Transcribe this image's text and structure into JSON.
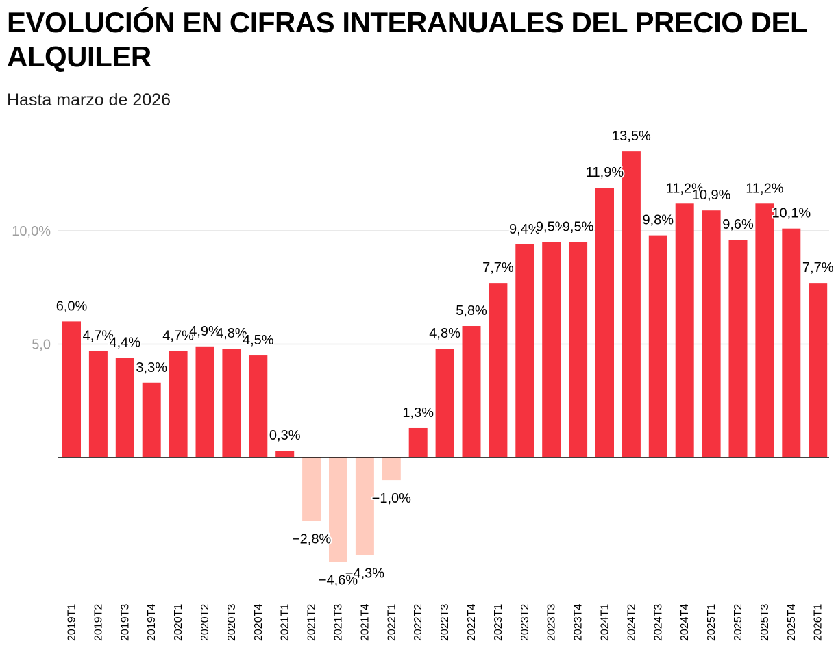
{
  "chart_data": {
    "type": "bar",
    "title": "EVOLUCIÓN EN CIFRAS INTERANUALES DEL PRECIO DEL ALQUILER",
    "subtitle": "Hasta marzo de 2026",
    "xlabel": "",
    "ylabel": "",
    "ylim": [
      -5,
      15
    ],
    "yticks": [
      {
        "value": 5,
        "label": "5,0"
      },
      {
        "value": 10,
        "label": "10,0%"
      }
    ],
    "grid": true,
    "colors": {
      "positive": "#f5333f",
      "negative": "#ffcbbd",
      "grid": "#e2e2e2",
      "zero_line": "#000000"
    },
    "categories": [
      "2019T1",
      "2019T2",
      "2019T3",
      "2019T4",
      "2020T1",
      "2020T2",
      "2020T3",
      "2020T4",
      "2021T1",
      "2021T2",
      "2021T3",
      "2021T4",
      "2022T1",
      "2022T2",
      "2022T3",
      "2022T4",
      "2023T1",
      "2023T2",
      "2023T3",
      "2023T4",
      "2024T1",
      "2024T2",
      "2024T3",
      "2024T4",
      "2025T1",
      "2025T2",
      "2025T3",
      "2025T4",
      "2026T1"
    ],
    "values": [
      6.0,
      4.7,
      4.4,
      3.3,
      4.7,
      4.9,
      4.8,
      4.5,
      0.3,
      -2.8,
      -4.6,
      -4.3,
      -1.0,
      1.3,
      4.8,
      5.8,
      7.7,
      9.4,
      9.5,
      9.5,
      11.9,
      13.5,
      9.8,
      11.2,
      10.9,
      9.6,
      11.2,
      10.1,
      7.7
    ],
    "value_labels": [
      "6,0%",
      "4,7%",
      "4,4%",
      "3,3%",
      "4,7%",
      "4,9%",
      "4,8%",
      "4,5%",
      "0,3%",
      "−2,8%",
      "−4,6%",
      "−4,3%",
      "−1,0%",
      "1,3%",
      "4,8%",
      "5,8%",
      "7,7%",
      "9,4%",
      "9,5%",
      "9,5%",
      "11,9%",
      "13,5%",
      "9,8%",
      "11,2%",
      "10,9%",
      "9,6%",
      "11,2%",
      "10,1%",
      "7,7%"
    ]
  }
}
